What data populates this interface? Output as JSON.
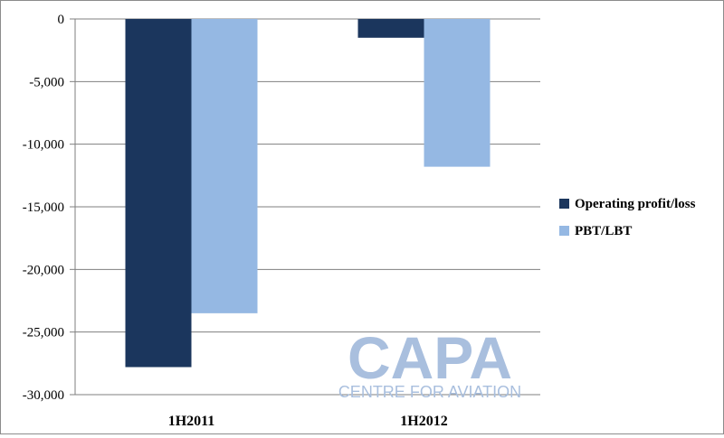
{
  "chart_data": {
    "type": "bar",
    "categories": [
      "1H2011",
      "1H2012"
    ],
    "series": [
      {
        "name": "Operating profit/loss",
        "values": [
          -27800,
          -1500
        ],
        "color": "#1b365d"
      },
      {
        "name": "PBT/LBT",
        "values": [
          -23500,
          -11800
        ],
        "color": "#95b8e3"
      }
    ],
    "ylim": [
      -30000,
      0
    ],
    "yticks": [
      0,
      -5000,
      -10000,
      -15000,
      -20000,
      -25000,
      -30000
    ],
    "ytick_labels": [
      "0",
      "-5,000",
      "-10,000",
      "-15,000",
      "-20,000",
      "-25,000",
      "-30,000"
    ],
    "grid": true,
    "legend": "right"
  },
  "watermark": {
    "logo": "CAPA",
    "tagline": "CENTRE FOR AVIATION"
  }
}
